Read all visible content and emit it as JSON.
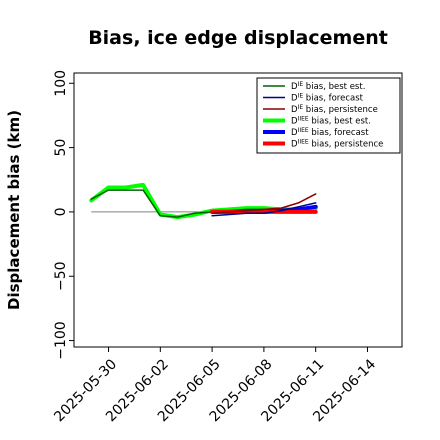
{
  "chart_data": {
    "type": "line",
    "title": "Bias, ice edge displacement",
    "xlabel": "",
    "ylabel": "Displacement bias (km)",
    "ylim": [
      -105,
      108
    ],
    "y_ticks": [
      -100,
      -50,
      0,
      50,
      100
    ],
    "x_range": [
      "2025-05-28",
      "2025-06-16"
    ],
    "x_ticks": [
      "2025-05-30",
      "2025-06-02",
      "2025-06-05",
      "2025-06-08",
      "2025-06-11",
      "2025-06-14"
    ],
    "x_tick_highlight": "2025-06-05",
    "x_tick_highlight_color": "#228b22",
    "zero_line": true,
    "grid": false,
    "legend_position": "top-right",
    "series": [
      {
        "name": "D^IE bias, best est.",
        "color": "#006400",
        "width": 1.5,
        "x": [
          "2025-05-29",
          "2025-05-30",
          "2025-05-31",
          "2025-06-01",
          "2025-06-02",
          "2025-06-03",
          "2025-06-04",
          "2025-06-05",
          "2025-06-06",
          "2025-06-07",
          "2025-06-08",
          "2025-06-09",
          "2025-06-10",
          "2025-06-11"
        ],
        "values": [
          10,
          17,
          17,
          17,
          -3,
          -4,
          -1,
          0,
          1,
          2,
          2,
          1,
          0,
          1
        ]
      },
      {
        "name": "D^IE bias, forecast",
        "color": "#00008b",
        "width": 1.5,
        "x": [
          "2025-06-05",
          "2025-06-06",
          "2025-06-07",
          "2025-06-08",
          "2025-06-09",
          "2025-06-10",
          "2025-06-11"
        ],
        "values": [
          -3,
          -2,
          -1,
          -1,
          1,
          4,
          7
        ]
      },
      {
        "name": "D^IE bias, persistence",
        "color": "#8b0000",
        "width": 1.5,
        "x": [
          "2025-06-05",
          "2025-06-06",
          "2025-06-07",
          "2025-06-08",
          "2025-06-09",
          "2025-06-10",
          "2025-06-11"
        ],
        "values": [
          -1,
          0,
          1,
          2,
          3,
          7,
          14
        ]
      },
      {
        "name": "D^IIEE bias, best est.",
        "color": "#00ff00",
        "width": 4,
        "x": [
          "2025-05-29",
          "2025-05-30",
          "2025-05-31",
          "2025-06-01",
          "2025-06-02",
          "2025-06-03",
          "2025-06-04",
          "2025-06-05",
          "2025-06-06",
          "2025-06-07",
          "2025-06-08",
          "2025-06-09",
          "2025-06-10",
          "2025-06-11"
        ],
        "values": [
          9,
          19,
          19,
          21,
          -2,
          -4,
          -2,
          1,
          2,
          3,
          3,
          2,
          2,
          3
        ]
      },
      {
        "name": "D^IIEE bias, forecast",
        "color": "#0000ff",
        "width": 4,
        "x": [
          "2025-06-05",
          "2025-06-06",
          "2025-06-07",
          "2025-06-08",
          "2025-06-09",
          "2025-06-10",
          "2025-06-11"
        ],
        "values": [
          0,
          0,
          0,
          0,
          1,
          2,
          4
        ]
      },
      {
        "name": "D^IIEE bias, persistence",
        "color": "#ff0000",
        "width": 4,
        "x": [
          "2025-06-05",
          "2025-06-06",
          "2025-06-07",
          "2025-06-08",
          "2025-06-09",
          "2025-06-10",
          "2025-06-11"
        ],
        "values": [
          0,
          0,
          0,
          0,
          0,
          0,
          0
        ]
      }
    ],
    "reference_line": {
      "x": [
        "2025-05-29",
        "2025-06-11"
      ],
      "value": 0,
      "color": "#808080"
    },
    "legend": [
      {
        "main": "D",
        "sup": "IE",
        "rest": " bias, best est.",
        "color": "#006400",
        "width": 1.5
      },
      {
        "main": "D",
        "sup": "IE",
        "rest": " bias, forecast",
        "color": "#00008b",
        "width": 1.5
      },
      {
        "main": "D",
        "sup": "IE",
        "rest": " bias, persistence",
        "color": "#8b0000",
        "width": 1.5
      },
      {
        "main": "D",
        "sup": "IIEE",
        "rest": " bias, best est.",
        "color": "#00ff00",
        "width": 4
      },
      {
        "main": "D",
        "sup": "IIEE",
        "rest": " bias, forecast",
        "color": "#0000ff",
        "width": 4
      },
      {
        "main": "D",
        "sup": "IIEE",
        "rest": " bias, persistence",
        "color": "#ff0000",
        "width": 4
      }
    ]
  }
}
